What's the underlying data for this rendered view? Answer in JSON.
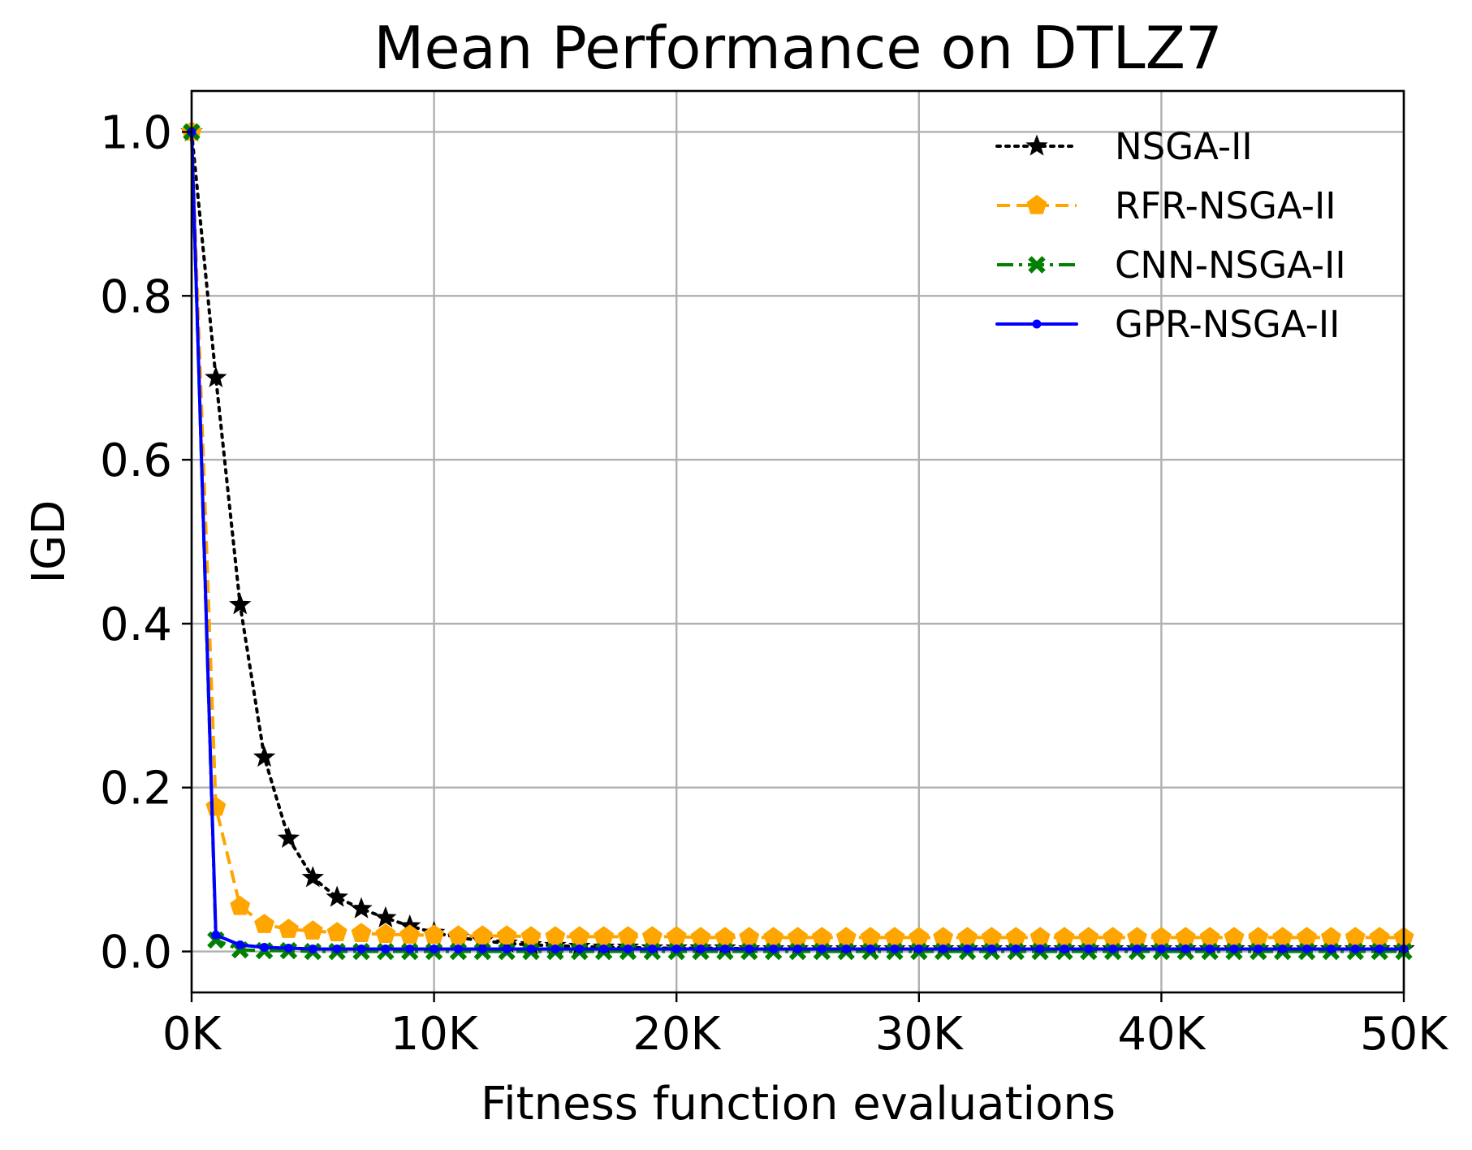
{
  "chart_data": {
    "type": "line",
    "title": "Mean Performance on DTLZ7",
    "xlabel": "Fitness function evaluations",
    "ylabel": "IGD",
    "xlim": [
      0,
      50000
    ],
    "ylim": [
      -0.05,
      1.05
    ],
    "xticks": [
      0,
      10000,
      20000,
      30000,
      40000,
      50000
    ],
    "xtick_labels": [
      "0K",
      "10K",
      "20K",
      "30K",
      "40K",
      "50K"
    ],
    "yticks": [
      0.0,
      0.2,
      0.4,
      0.6,
      0.8,
      1.0
    ],
    "ytick_labels": [
      "0.0",
      "0.2",
      "0.4",
      "0.6",
      "0.8",
      "1.0"
    ],
    "grid": true,
    "legend_position": "top-right",
    "x_step": 1000,
    "series": [
      {
        "name": "NSGA-II",
        "color": "#000000",
        "linestyle": "dotted",
        "marker": "star",
        "values": [
          1.0,
          0.7,
          0.423,
          0.237,
          0.138,
          0.09,
          0.066,
          0.052,
          0.041,
          0.031,
          0.023,
          0.017,
          0.013,
          0.01,
          0.008,
          0.007,
          0.006,
          0.005,
          0.005,
          0.004,
          0.004,
          0.004,
          0.004,
          0.003,
          0.003,
          0.003,
          0.003,
          0.003,
          0.003,
          0.003,
          0.003,
          0.003,
          0.003,
          0.003,
          0.003,
          0.003,
          0.003,
          0.003,
          0.003,
          0.003,
          0.003,
          0.003,
          0.003,
          0.003,
          0.003,
          0.003,
          0.003,
          0.003,
          0.003,
          0.003,
          0.003
        ]
      },
      {
        "name": "RFR-NSGA-II",
        "color": "#ffa500",
        "linestyle": "dashed",
        "marker": "pentagon",
        "values": [
          1.0,
          0.176,
          0.055,
          0.033,
          0.027,
          0.025,
          0.023,
          0.022,
          0.021,
          0.02,
          0.02,
          0.019,
          0.019,
          0.019,
          0.018,
          0.018,
          0.018,
          0.018,
          0.018,
          0.018,
          0.018,
          0.017,
          0.017,
          0.017,
          0.017,
          0.017,
          0.017,
          0.017,
          0.017,
          0.017,
          0.017,
          0.017,
          0.017,
          0.017,
          0.017,
          0.017,
          0.017,
          0.017,
          0.017,
          0.017,
          0.017,
          0.017,
          0.017,
          0.017,
          0.017,
          0.017,
          0.017,
          0.017,
          0.017,
          0.017,
          0.017
        ]
      },
      {
        "name": "CNN-NSGA-II",
        "color": "#008000",
        "linestyle": "dashdot",
        "marker": "x-filled",
        "values": [
          1.0,
          0.014,
          0.002,
          0.001,
          0.001,
          0.0,
          0.0,
          0.0,
          0.0,
          0.0,
          0.0,
          0.0,
          0.0,
          0.0,
          0.0,
          0.0,
          0.0,
          0.0,
          0.0,
          0.0,
          0.0,
          0.0,
          0.0,
          0.0,
          0.0,
          0.0,
          0.0,
          0.0,
          0.0,
          0.0,
          0.0,
          0.0,
          0.0,
          0.0,
          0.0,
          0.0,
          0.0,
          0.0,
          0.0,
          0.0,
          0.0,
          0.0,
          0.0,
          0.0,
          0.0,
          0.0,
          0.0,
          0.0,
          0.0,
          0.0,
          0.0
        ]
      },
      {
        "name": "GPR-NSGA-II",
        "color": "#0000ff",
        "linestyle": "solid",
        "marker": "dot",
        "values": [
          1.0,
          0.02,
          0.008,
          0.005,
          0.004,
          0.003,
          0.003,
          0.003,
          0.003,
          0.003,
          0.003,
          0.003,
          0.003,
          0.003,
          0.003,
          0.003,
          0.003,
          0.003,
          0.003,
          0.003,
          0.003,
          0.003,
          0.003,
          0.003,
          0.003,
          0.003,
          0.003,
          0.003,
          0.003,
          0.003,
          0.003,
          0.003,
          0.003,
          0.003,
          0.003,
          0.003,
          0.003,
          0.003,
          0.003,
          0.003,
          0.003,
          0.003,
          0.003,
          0.003,
          0.003,
          0.003,
          0.003,
          0.003,
          0.003,
          0.003,
          0.003
        ]
      }
    ]
  }
}
